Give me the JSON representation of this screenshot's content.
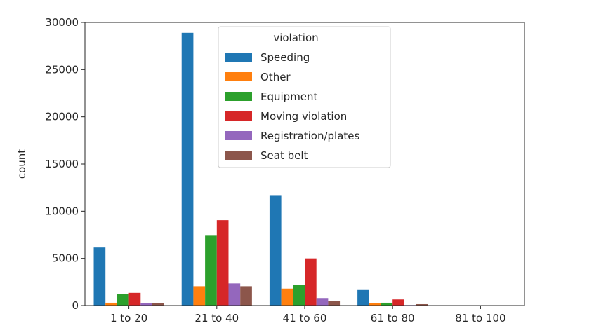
{
  "chart_data": {
    "type": "bar",
    "ylabel": "count",
    "xlabel": "",
    "ylim": [
      0,
      30000
    ],
    "yticks": [
      0,
      5000,
      10000,
      15000,
      20000,
      25000,
      30000
    ],
    "categories": [
      "1 to 20",
      "21 to 40",
      "41 to 60",
      "61 to 80",
      "81 to 100"
    ],
    "legend": {
      "title": "violation",
      "placement": "upper-center"
    },
    "grid": false,
    "series": [
      {
        "name": "Speeding",
        "color": "#1f77b4",
        "values": [
          6150,
          28900,
          11700,
          1650,
          0
        ]
      },
      {
        "name": "Other",
        "color": "#ff7f0e",
        "values": [
          300,
          2050,
          1800,
          250,
          0
        ]
      },
      {
        "name": "Equipment",
        "color": "#2ca02c",
        "values": [
          1250,
          7400,
          2200,
          300,
          0
        ]
      },
      {
        "name": "Moving violation",
        "color": "#d62728",
        "values": [
          1350,
          9050,
          5000,
          650,
          0
        ]
      },
      {
        "name": "Registration/plates",
        "color": "#9467bd",
        "values": [
          250,
          2350,
          800,
          50,
          0
        ]
      },
      {
        "name": "Seat belt",
        "color": "#8c564b",
        "values": [
          250,
          2050,
          500,
          150,
          0
        ]
      }
    ]
  }
}
